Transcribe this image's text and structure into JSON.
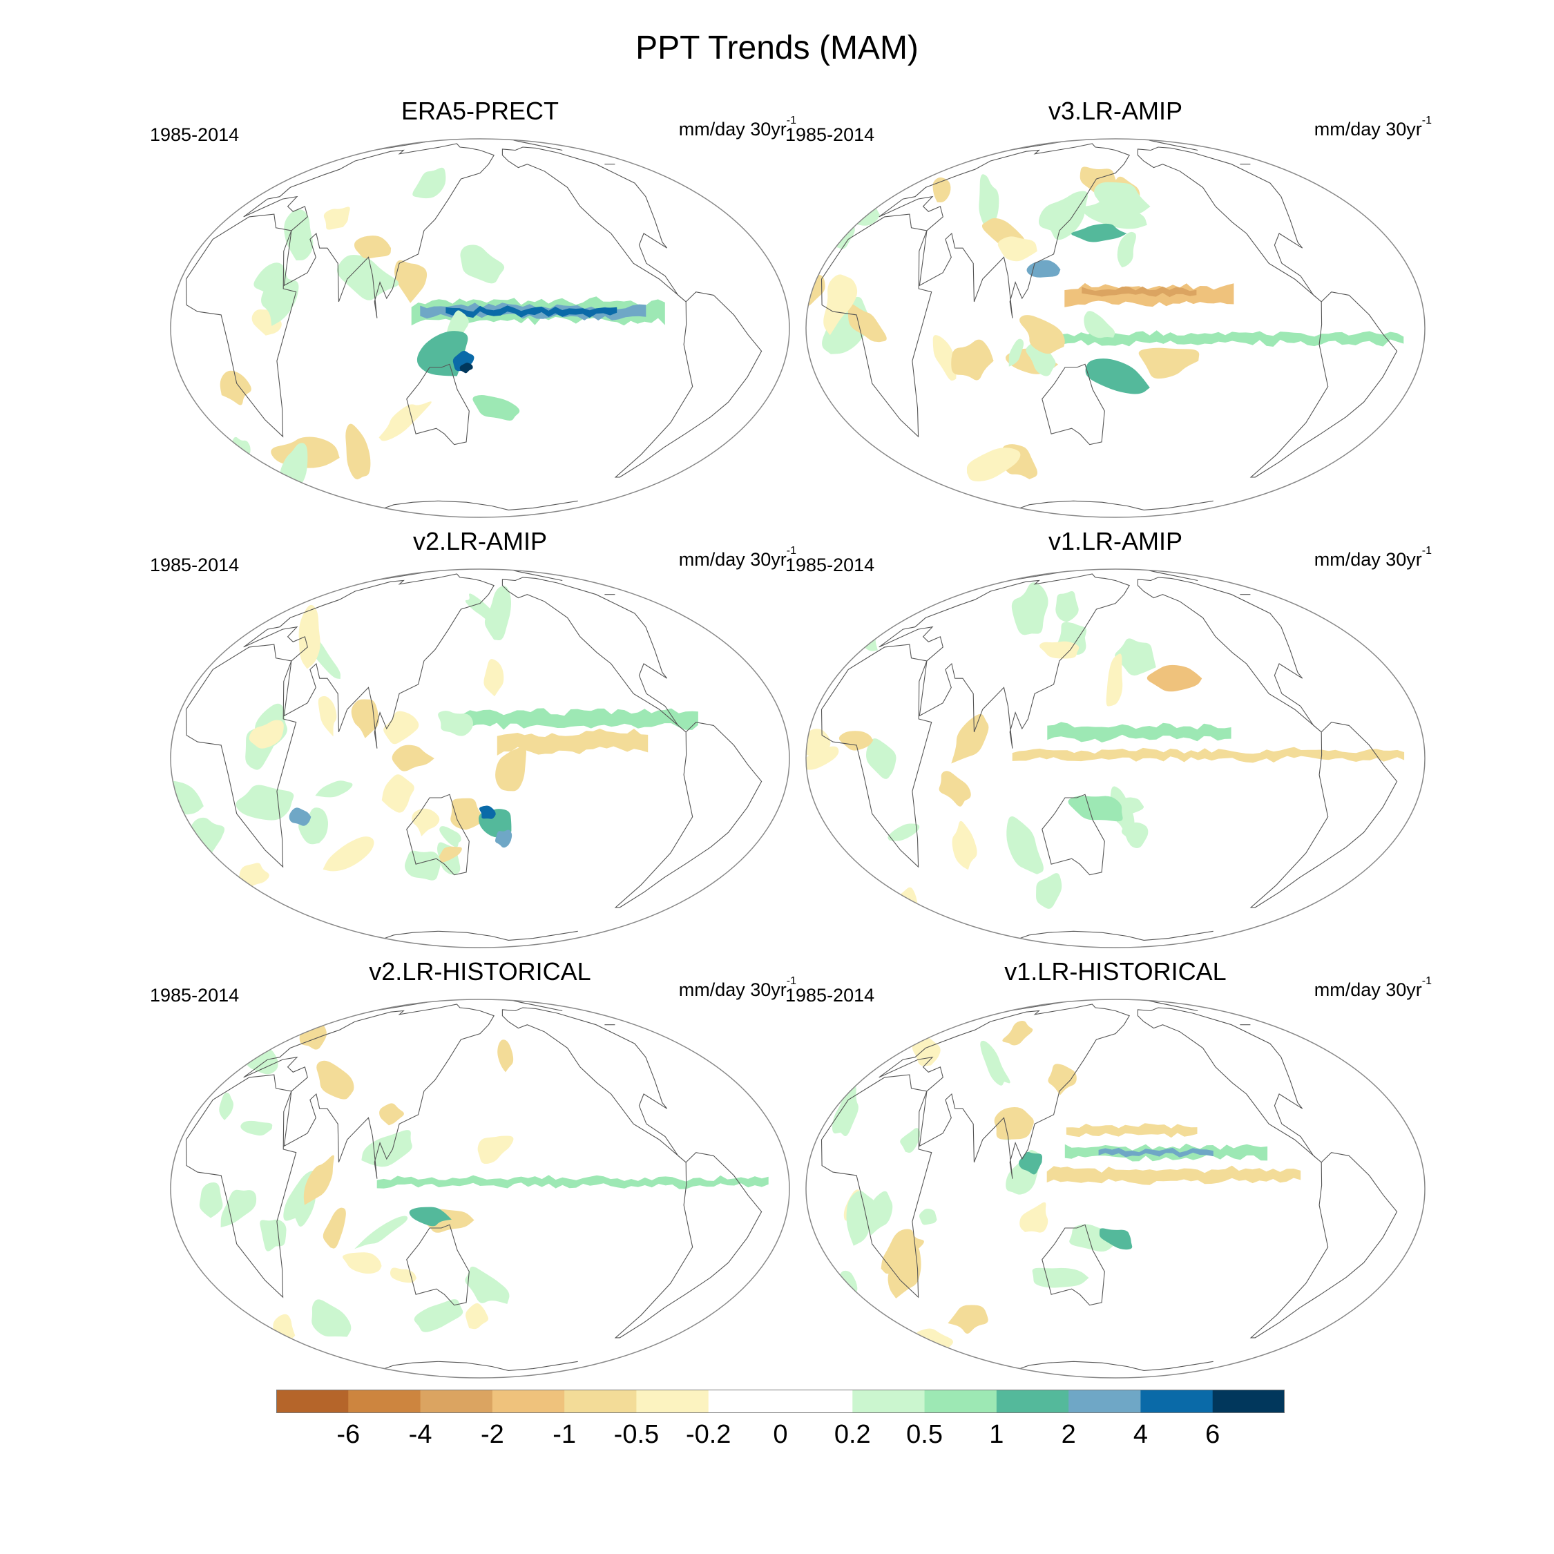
{
  "title": "PPT Trends (MAM)",
  "panels": [
    {
      "title": "ERA5-PRECT",
      "period": "1985-2014",
      "units": "mm/day 30yr",
      "units_sup": "-1"
    },
    {
      "title": "v3.LR-AMIP",
      "period": "1985-2014",
      "units": "mm/day 30yr",
      "units_sup": "-1"
    },
    {
      "title": "v2.LR-AMIP",
      "period": "1985-2014",
      "units": "mm/day 30yr",
      "units_sup": "-1"
    },
    {
      "title": "v1.LR-AMIP",
      "period": "1985-2014",
      "units": "mm/day 30yr",
      "units_sup": "-1"
    },
    {
      "title": "v2.LR-HISTORICAL",
      "period": "1985-2014",
      "units": "mm/day 30yr",
      "units_sup": "-1"
    },
    {
      "title": "v1.LR-HISTORICAL",
      "period": "1985-2014",
      "units": "mm/day 30yr",
      "units_sup": "-1"
    }
  ],
  "colorbar": {
    "labels": [
      "-6",
      "-4",
      "-2",
      "-1",
      "-0.5",
      "-0.2",
      "0",
      "0.2",
      "0.5",
      "1",
      "2",
      "4",
      "6"
    ],
    "colors": [
      "#b5652a",
      "#cd853f",
      "#dba461",
      "#efc27c",
      "#f3dc98",
      "#fcf3c0",
      "#ffffff",
      "#ffffff",
      "#cbf6cf",
      "#9de8b4",
      "#54b99b",
      "#6fa7c6",
      "#0a6aa8",
      "#01375c"
    ]
  }
}
